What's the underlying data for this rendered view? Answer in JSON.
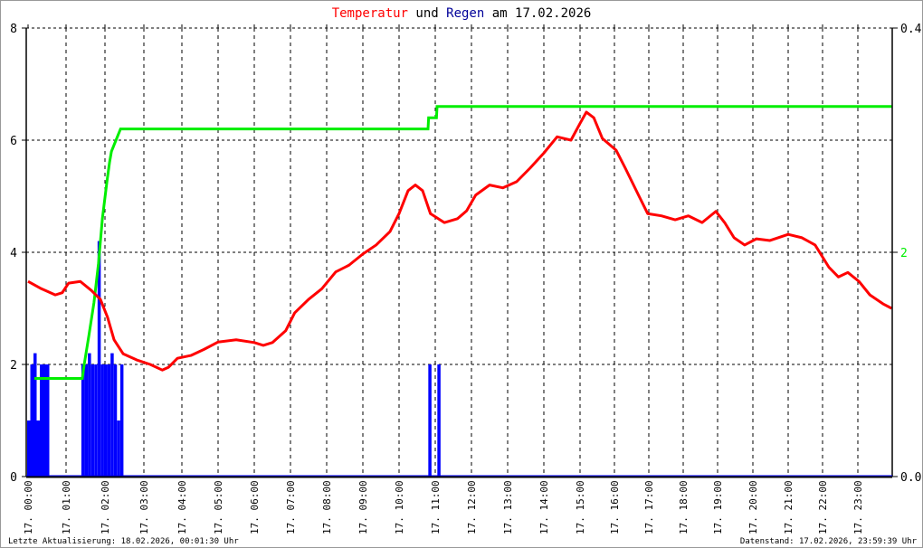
{
  "chart_data": {
    "type": "line",
    "title": {
      "part1": "Temperatur",
      "part2": " und ",
      "part3": "Regen",
      "part4": " am 17.02.2026"
    },
    "colors": {
      "temperature": "#ff0000",
      "rain": "#0000ff",
      "rain_cumulative": "#00ee00",
      "title_rain": "#000099"
    },
    "left_axis": {
      "range": [
        0,
        8
      ],
      "ticks": [
        "0",
        "2",
        "4",
        "6",
        "8"
      ]
    },
    "right_axis": {
      "range": [
        0.0,
        0.4
      ],
      "ticks": [
        "0.0",
        "0.4"
      ],
      "green_tick": "2"
    },
    "x_ticks": [
      "17. 00:00",
      "17. 01:00",
      "17. 02:00",
      "17. 03:00",
      "17. 04:00",
      "17. 05:00",
      "17. 06:00",
      "17. 07:00",
      "17. 08:00",
      "17. 09:00",
      "17. 10:00",
      "17. 11:00",
      "17. 12:00",
      "17. 13:00",
      "17. 14:00",
      "17. 15:00",
      "17. 16:00",
      "17. 17:00",
      "17. 18:00",
      "17. 19:00",
      "17. 20:00",
      "17. 21:00",
      "17. 22:00",
      "17. 23:00"
    ],
    "grid": true,
    "series": [
      {
        "kind": "temperature",
        "points": [
          [
            "00:00",
            3.48
          ],
          [
            "00:21",
            3.35
          ],
          [
            "00:43",
            3.24
          ],
          [
            "00:54",
            3.28
          ],
          [
            "01:04",
            3.45
          ],
          [
            "01:22",
            3.48
          ],
          [
            "01:39",
            3.32
          ],
          [
            "01:53",
            3.16
          ],
          [
            "02:04",
            2.84
          ],
          [
            "02:14",
            2.44
          ],
          [
            "02:28",
            2.19
          ],
          [
            "02:49",
            2.08
          ],
          [
            "03:10",
            2.0
          ],
          [
            "03:29",
            1.9
          ],
          [
            "03:39",
            1.95
          ],
          [
            "03:53",
            2.11
          ],
          [
            "04:15",
            2.16
          ],
          [
            "04:37",
            2.27
          ],
          [
            "05:00",
            2.4
          ],
          [
            "05:30",
            2.44
          ],
          [
            "06:00",
            2.39
          ],
          [
            "06:15",
            2.34
          ],
          [
            "06:30",
            2.39
          ],
          [
            "06:52",
            2.6
          ],
          [
            "07:07",
            2.92
          ],
          [
            "07:30",
            3.16
          ],
          [
            "07:52",
            3.35
          ],
          [
            "08:15",
            3.65
          ],
          [
            "08:37",
            3.77
          ],
          [
            "09:00",
            3.97
          ],
          [
            "09:22",
            4.13
          ],
          [
            "09:45",
            4.37
          ],
          [
            "10:00",
            4.69
          ],
          [
            "10:15",
            5.1
          ],
          [
            "10:27",
            5.2
          ],
          [
            "10:39",
            5.1
          ],
          [
            "10:52",
            4.69
          ],
          [
            "11:15",
            4.53
          ],
          [
            "11:37",
            4.6
          ],
          [
            "11:52",
            4.74
          ],
          [
            "12:07",
            5.02
          ],
          [
            "12:30",
            5.2
          ],
          [
            "12:52",
            5.15
          ],
          [
            "13:15",
            5.26
          ],
          [
            "13:37",
            5.5
          ],
          [
            "14:00",
            5.77
          ],
          [
            "14:22",
            6.06
          ],
          [
            "14:45",
            6.0
          ],
          [
            "15:00",
            6.3
          ],
          [
            "15:11",
            6.5
          ],
          [
            "15:24",
            6.4
          ],
          [
            "15:39",
            6.03
          ],
          [
            "16:03",
            5.82
          ],
          [
            "16:19",
            5.5
          ],
          [
            "16:42",
            5.02
          ],
          [
            "16:58",
            4.69
          ],
          [
            "17:22",
            4.65
          ],
          [
            "17:46",
            4.58
          ],
          [
            "18:09",
            4.65
          ],
          [
            "18:33",
            4.53
          ],
          [
            "18:57",
            4.73
          ],
          [
            "19:12",
            4.53
          ],
          [
            "19:28",
            4.26
          ],
          [
            "19:46",
            4.13
          ],
          [
            "20:06",
            4.24
          ],
          [
            "20:29",
            4.21
          ],
          [
            "21:00",
            4.32
          ],
          [
            "21:24",
            4.26
          ],
          [
            "21:47",
            4.13
          ],
          [
            "22:11",
            3.73
          ],
          [
            "22:27",
            3.56
          ],
          [
            "22:43",
            3.64
          ],
          [
            "23:02",
            3.48
          ],
          [
            "23:21",
            3.24
          ],
          [
            "23:44",
            3.08
          ],
          [
            "23:59",
            3.0
          ]
        ]
      },
      {
        "kind": "rain_cumulative",
        "points": [
          [
            "00:10",
            0.875
          ],
          [
            "01:25",
            0.875
          ],
          [
            "01:28",
            1.0
          ],
          [
            "01:35",
            1.25
          ],
          [
            "01:43",
            1.55
          ],
          [
            "01:50",
            1.9
          ],
          [
            "01:56",
            2.3
          ],
          [
            "02:03",
            2.63
          ],
          [
            "02:07",
            2.8
          ],
          [
            "02:10",
            2.9
          ],
          [
            "02:17",
            3.0
          ],
          [
            "02:24",
            3.1
          ],
          [
            "10:48",
            3.1
          ],
          [
            "10:49",
            3.2
          ],
          [
            "11:02",
            3.2
          ],
          [
            "11:03",
            3.3
          ],
          [
            "23:59",
            3.3
          ]
        ]
      },
      {
        "kind": "rain",
        "bars": [
          [
            "00:00",
            0.05
          ],
          [
            "00:05",
            0.1
          ],
          [
            "00:10",
            0.11
          ],
          [
            "00:15",
            0.05
          ],
          [
            "00:20",
            0.1
          ],
          [
            "00:25",
            0.1
          ],
          [
            "00:30",
            0.1
          ],
          [
            "01:25",
            0.1
          ],
          [
            "01:30",
            0.1
          ],
          [
            "01:35",
            0.11
          ],
          [
            "01:40",
            0.1
          ],
          [
            "01:45",
            0.1
          ],
          [
            "01:50",
            0.21
          ],
          [
            "01:55",
            0.1
          ],
          [
            "02:00",
            0.1
          ],
          [
            "02:05",
            0.1
          ],
          [
            "02:10",
            0.11
          ],
          [
            "02:15",
            0.1
          ],
          [
            "02:20",
            0.05
          ],
          [
            "02:25",
            0.1
          ],
          [
            "10:50",
            0.1
          ],
          [
            "11:05",
            0.1
          ]
        ]
      }
    ]
  },
  "footer": {
    "last_update": "Letzte Aktualisierung: 18.02.2026, 00:01:30 Uhr",
    "data_state": "Datenstand: 17.02.2026, 23:59:39 Uhr"
  }
}
